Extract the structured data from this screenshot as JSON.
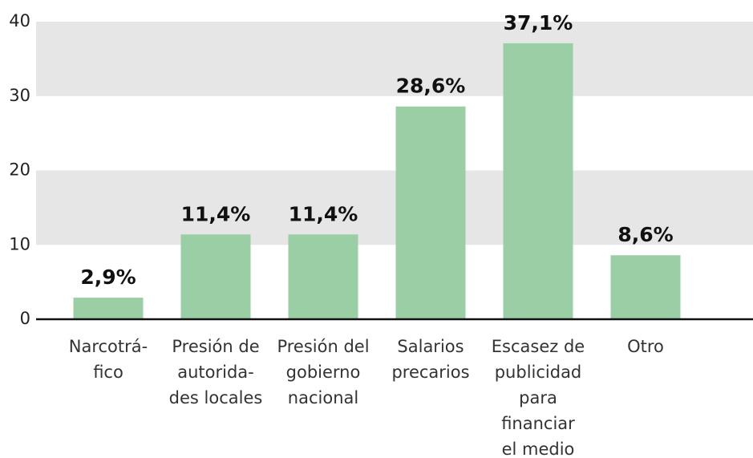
{
  "chart_data": {
    "type": "bar",
    "categories": [
      [
        "Narcotrá-",
        "fico"
      ],
      [
        "Presión de",
        "autorida-",
        "des locales"
      ],
      [
        "Presión del",
        "gobierno",
        "nacional"
      ],
      [
        "Salarios",
        "precarios"
      ],
      [
        "Escasez de",
        "publicidad",
        "para",
        "financiar",
        "el medio"
      ],
      [
        "Otro"
      ]
    ],
    "values": [
      2.9,
      11.4,
      11.4,
      28.6,
      37.1,
      8.6
    ],
    "value_labels": [
      "2,9%",
      "11,4%",
      "11,4%",
      "28,6%",
      "37,1%",
      "8,6%"
    ],
    "color": "#9acfa6",
    "ylim": [
      0,
      40
    ],
    "yticks": [
      0,
      10,
      20,
      30,
      40
    ],
    "banded_grid": true,
    "band_color": "#e6e6e6"
  }
}
